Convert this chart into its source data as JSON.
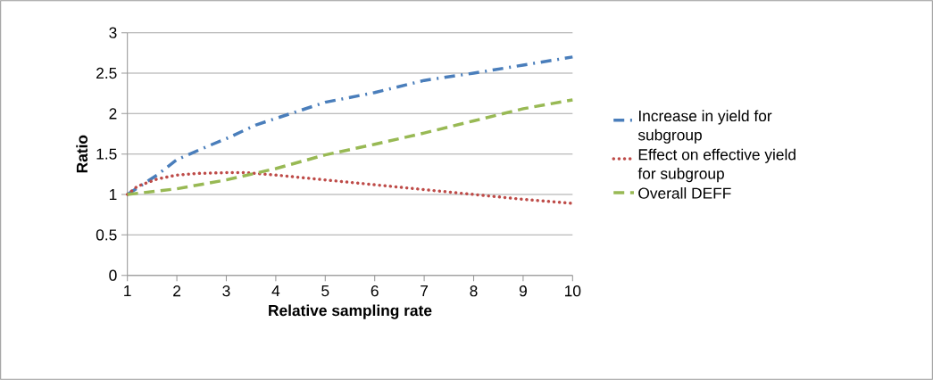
{
  "chart_data": {
    "type": "line",
    "xlabel": "Relative sampling rate",
    "ylabel": "Ratio",
    "xlim": [
      1,
      10
    ],
    "xticks": [
      1,
      2,
      3,
      4,
      5,
      6,
      7,
      8,
      9,
      10
    ],
    "ylim": [
      0,
      3
    ],
    "yticks": [
      0,
      0.5,
      1,
      1.5,
      2,
      2.5,
      3
    ],
    "grid": "y",
    "legend": "right",
    "marker": "none",
    "series": [
      {
        "name": "Increase in yield for subgroup",
        "color": "#4a7ebb",
        "line_style": "dashdot",
        "x": [
          1,
          1.6,
          2,
          2.6,
          3,
          3.6,
          4,
          5,
          6,
          7,
          8,
          9,
          10
        ],
        "values": [
          1,
          1.24,
          1.43,
          1.59,
          1.69,
          1.86,
          1.94,
          2.14,
          2.26,
          2.41,
          2.5,
          2.6,
          2.7
        ]
      },
      {
        "name": "Effect on effective yield for subgroup",
        "color": "#be4b48",
        "line_style": "dotted",
        "x": [
          1,
          1.2,
          1.6,
          2,
          2.4,
          3,
          3.4,
          4,
          5,
          6,
          7,
          8,
          9,
          10
        ],
        "values": [
          1,
          1.1,
          1.19,
          1.24,
          1.26,
          1.27,
          1.27,
          1.24,
          1.18,
          1.12,
          1.06,
          1.0,
          0.94,
          0.89
        ]
      },
      {
        "name": "Overall DEFF",
        "color": "#98b954",
        "line_style": "dashed",
        "x": [
          1,
          2,
          3,
          4,
          5,
          6,
          7,
          8,
          9,
          10
        ],
        "values": [
          1,
          1.07,
          1.18,
          1.32,
          1.49,
          1.62,
          1.76,
          1.91,
          2.06,
          2.17
        ]
      }
    ]
  }
}
